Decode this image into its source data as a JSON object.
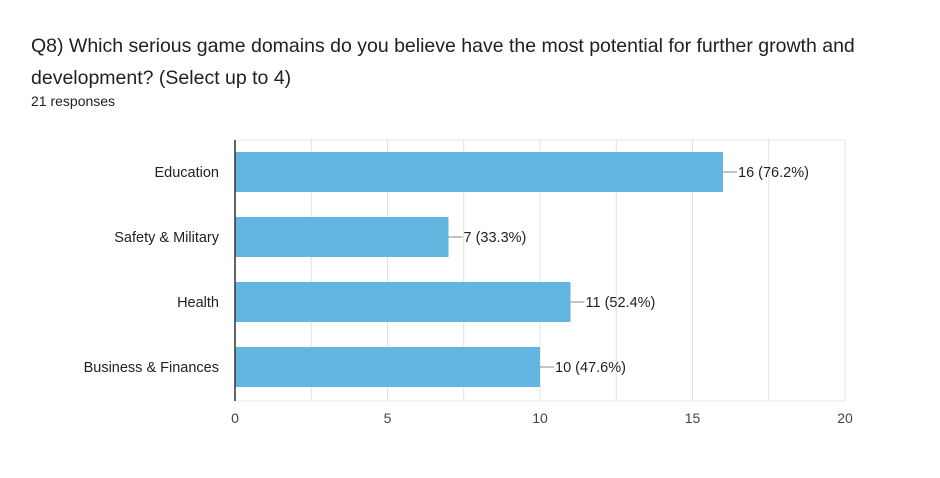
{
  "question": {
    "title": "Q8) Which serious game domains do you believe have the most potential for further growth and development?   (Select up to 4)",
    "responses": "21 responses"
  },
  "colors": {
    "bar": "#62b6e0",
    "grid": "#e0e0e0",
    "axis": "#333333",
    "label_line": "#888888"
  },
  "chart_data": {
    "type": "bar",
    "orientation": "horizontal",
    "title": "Q8) Which serious game domains do you believe have the most potential for further growth and development?   (Select up to 4)",
    "xlabel": "",
    "ylabel": "",
    "categories": [
      "Education",
      "Safety & Military",
      "Health",
      "Business & Finances"
    ],
    "values": [
      16,
      7,
      11,
      10
    ],
    "data_labels": [
      "16 (76.2%)",
      "7 (33.3%)",
      "11 (52.4%)",
      "10 (47.6%)"
    ],
    "xlim": [
      0,
      20
    ],
    "xticks": [
      0,
      5,
      10,
      15,
      20
    ],
    "grid": true,
    "legend": "none"
  }
}
